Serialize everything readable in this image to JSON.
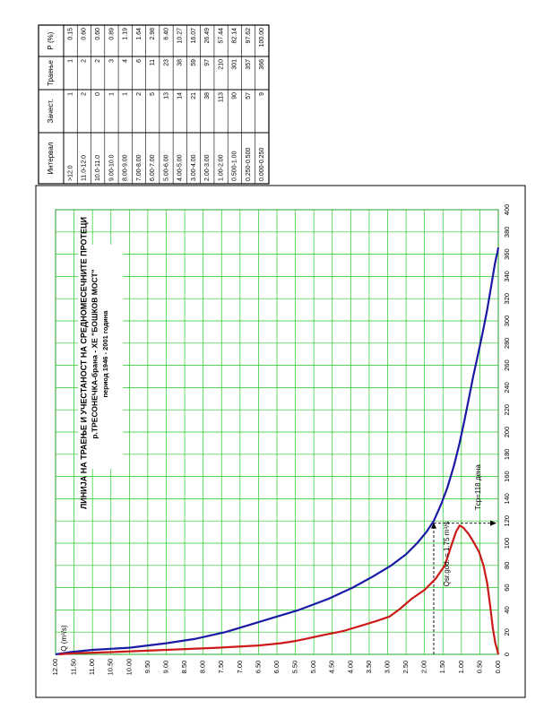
{
  "table": {
    "headers": [
      "Интервал",
      "Зачест.",
      "Траење",
      "P (%)"
    ],
    "rows": [
      [
        ">12.0",
        "1",
        "1",
        "0.15"
      ],
      [
        "11.0-12.0",
        "2",
        "2",
        "0.60"
      ],
      [
        "10.0-11.0",
        "0",
        "2",
        "0.60"
      ],
      [
        "9.00-10.0",
        "1",
        "3",
        "0.89"
      ],
      [
        "8.00-9.00",
        "1",
        "4",
        "1.19"
      ],
      [
        "7.00-8.00",
        "2",
        "6",
        "1.64"
      ],
      [
        "6.00-7.00",
        "5",
        "11",
        "2.98"
      ],
      [
        "5.00-6.00",
        "13",
        "23",
        "6.40"
      ],
      [
        "4.00-5.00",
        "14",
        "38",
        "10.27"
      ],
      [
        "3.00-4.00",
        "21",
        "59",
        "16.07"
      ],
      [
        "2.00-3.00",
        "38",
        "97",
        "26.49"
      ],
      [
        "1.00-2.00",
        "113",
        "210",
        "57.44"
      ],
      [
        "0.500-1.00",
        "90",
        "301",
        "82.14"
      ],
      [
        "0.250-0.500",
        "57",
        "357",
        "97.62"
      ],
      [
        "0.000-0.250",
        "9",
        "366",
        "100.00"
      ]
    ]
  },
  "chart_data": {
    "type": "line",
    "title": "ЛИНИЈА НА ТРАЕЊЕ И УЧЕСТАНОСТ НА СРЕДНОМЕСЕЧНИТЕ ПРОТЕЦИ",
    "subtitle": "р.ТРЕСОНЕЧКА-брана - ХЕ \"БОШКОВ МОСТ\"",
    "period": "период 1946 - 2001 година",
    "xlabel": "",
    "ylabel": "Q (m³/s)",
    "x_ticks": [
      "0",
      "20",
      "40",
      "60",
      "80",
      "100",
      "120",
      "140",
      "160",
      "180",
      "200",
      "220",
      "240",
      "260",
      "280",
      "300",
      "320",
      "340",
      "360",
      "380",
      "400"
    ],
    "y_ticks": [
      "0.00",
      "0.50",
      "1.00",
      "1.50",
      "2.00",
      "2.50",
      "3.00",
      "3.50",
      "4.00",
      "4.50",
      "5.00",
      "5.50",
      "6.00",
      "6.50",
      "7.00",
      "7.50",
      "8.00",
      "8.50",
      "9.00",
      "9.50",
      "10.00",
      "10.50",
      "11.00",
      "11.50",
      "12.00"
    ],
    "xlim": [
      0,
      400
    ],
    "ylim": [
      0,
      12
    ],
    "grid": true,
    "series": [
      {
        "color": "#1a1aa6",
        "points": [
          [
            0,
            12.0
          ],
          [
            2,
            11.6
          ],
          [
            4,
            11.0
          ],
          [
            6,
            10.0
          ],
          [
            10,
            9.0
          ],
          [
            14,
            8.2
          ],
          [
            20,
            7.4
          ],
          [
            26,
            6.8
          ],
          [
            32,
            6.2
          ],
          [
            40,
            5.4
          ],
          [
            50,
            4.6
          ],
          [
            60,
            3.95
          ],
          [
            70,
            3.4
          ],
          [
            80,
            2.9
          ],
          [
            90,
            2.5
          ],
          [
            100,
            2.2
          ],
          [
            110,
            1.95
          ],
          [
            120,
            1.75
          ],
          [
            135,
            1.55
          ],
          [
            150,
            1.38
          ],
          [
            170,
            1.2
          ],
          [
            190,
            1.05
          ],
          [
            210,
            0.92
          ],
          [
            230,
            0.8
          ],
          [
            250,
            0.68
          ],
          [
            270,
            0.55
          ],
          [
            290,
            0.42
          ],
          [
            310,
            0.3
          ],
          [
            330,
            0.2
          ],
          [
            350,
            0.1
          ],
          [
            358,
            0.05
          ],
          [
            362,
            0.02
          ],
          [
            366,
            0.0
          ]
        ]
      },
      {
        "color": "#cc1a1a",
        "points": [
          [
            0,
            11.9
          ],
          [
            1,
            11.5
          ],
          [
            2,
            10.5
          ],
          [
            4,
            9.0
          ],
          [
            6,
            7.6
          ],
          [
            8,
            6.5
          ],
          [
            10,
            5.9
          ],
          [
            12,
            5.5
          ],
          [
            14,
            5.2
          ],
          [
            17,
            4.8
          ],
          [
            21,
            4.2
          ],
          [
            26,
            3.7
          ],
          [
            30,
            3.3
          ],
          [
            34,
            2.95
          ],
          [
            40,
            2.7
          ],
          [
            50,
            2.35
          ],
          [
            58,
            2.0
          ],
          [
            68,
            1.7
          ],
          [
            80,
            1.45
          ],
          [
            90,
            1.35
          ],
          [
            100,
            1.25
          ],
          [
            110,
            1.15
          ],
          [
            116,
            1.05
          ],
          [
            114,
            0.95
          ],
          [
            108,
            0.8
          ],
          [
            100,
            0.65
          ],
          [
            92,
            0.52
          ],
          [
            80,
            0.4
          ],
          [
            64,
            0.3
          ],
          [
            44,
            0.22
          ],
          [
            24,
            0.15
          ],
          [
            10,
            0.08
          ],
          [
            4,
            0.03
          ],
          [
            0,
            0.0
          ]
        ]
      }
    ],
    "reference": {
      "qsr_value": 1.75,
      "tsr_value": 118,
      "qsr_label": "Qsr.god. = 1.75 m³/s",
      "tsr_label": "Tср=118 дена"
    }
  }
}
